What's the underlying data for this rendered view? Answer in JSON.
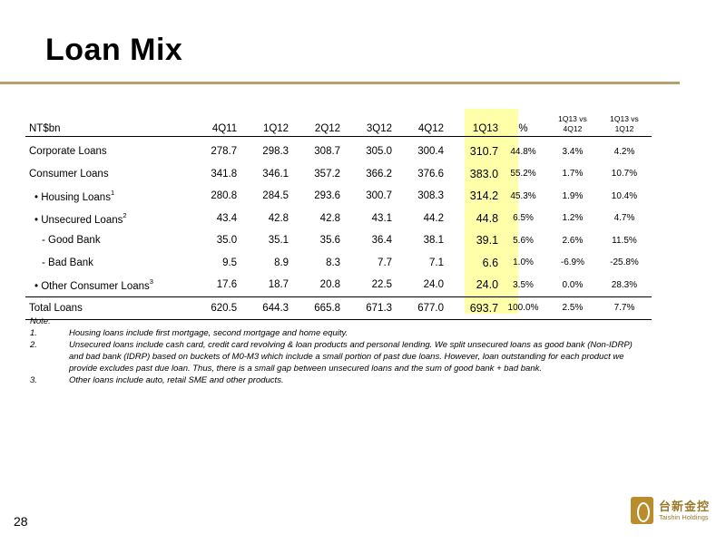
{
  "title": "Loan Mix",
  "table": {
    "headers": {
      "label": "NT$bn",
      "q4q11": "4Q11",
      "q1q12": "1Q12",
      "q2q12": "2Q12",
      "q3q12": "3Q12",
      "q4q12": "4Q12",
      "q1q13": "1Q13",
      "pct": "%",
      "vs4q12_top": "1Q13 vs",
      "vs4q12_bottom": "4Q12",
      "vs1q12_top": "1Q13 vs",
      "vs1q12_bottom": "1Q12"
    },
    "rows": [
      {
        "label": "Corporate Loans",
        "sup": "",
        "q4q11": "278.7",
        "q1q12": "298.3",
        "q2q12": "308.7",
        "q3q12": "305.0",
        "q4q12": "300.4",
        "q1q13": "310.7",
        "pct": "44.8%",
        "vs4q12": "3.4%",
        "vs1q12": "4.2%"
      },
      {
        "label": "Consumer Loans",
        "sup": "",
        "q4q11": "341.8",
        "q1q12": "346.1",
        "q2q12": "357.2",
        "q3q12": "366.2",
        "q4q12": "376.6",
        "q1q13": "383.0",
        "pct": "55.2%",
        "vs4q12": "1.7%",
        "vs1q12": "10.7%"
      },
      {
        "label": "• Housing Loans",
        "sup": "1",
        "q4q11": "280.8",
        "q1q12": "284.5",
        "q2q12": "293.6",
        "q3q12": "300.7",
        "q4q12": "308.3",
        "q1q13": "314.2",
        "pct": "45.3%",
        "vs4q12": "1.9%",
        "vs1q12": "10.4%"
      },
      {
        "label": "• Unsecured Loans",
        "sup": "2",
        "q4q11": "43.4",
        "q1q12": "42.8",
        "q2q12": "42.8",
        "q3q12": "43.1",
        "q4q12": "44.2",
        "q1q13": "44.8",
        "pct": "6.5%",
        "vs4q12": "1.2%",
        "vs1q12": "4.7%"
      },
      {
        "label": "- Good Bank",
        "sup": "",
        "q4q11": "35.0",
        "q1q12": "35.1",
        "q2q12": "35.6",
        "q3q12": "36.4",
        "q4q12": "38.1",
        "q1q13": "39.1",
        "pct": "5.6%",
        "vs4q12": "2.6%",
        "vs1q12": "11.5%"
      },
      {
        "label": "- Bad Bank",
        "sup": "",
        "q4q11": "9.5",
        "q1q12": "8.9",
        "q2q12": "8.3",
        "q3q12": "7.7",
        "q4q12": "7.1",
        "q1q13": "6.6",
        "pct": "1.0%",
        "vs4q12": "-6.9%",
        "vs1q12": "-25.8%"
      },
      {
        "label": "• Other Consumer Loans",
        "sup": "3",
        "q4q11": "17.6",
        "q1q12": "18.7",
        "q2q12": "20.8",
        "q3q12": "22.5",
        "q4q12": "24.0",
        "q1q13": "24.0",
        "pct": "3.5%",
        "vs4q12": "0.0%",
        "vs1q12": "28.3%"
      },
      {
        "label": "Total Loans",
        "sup": "",
        "q4q11": "620.5",
        "q1q12": "644.3",
        "q2q12": "665.8",
        "q3q12": "671.3",
        "q4q12": "677.0",
        "q1q13": "693.7",
        "pct": "100.0%",
        "vs4q12": "2.5%",
        "vs1q12": "7.7%"
      }
    ]
  },
  "notes": {
    "heading": "Note:",
    "items": [
      {
        "num": "1.",
        "text": "Housing loans include first mortgage, second mortgage and home equity."
      },
      {
        "num": "2.",
        "text": "Unsecured loans include cash card, credit card revolving & loan products and personal lending. We split unsecured loans as good bank (Non-IDRP) and bad bank (IDRP) based on buckets of M0-M3 which include a small portion of past due loans. However, loan outstanding for each product we provide excludes past due loan. Thus, there is a small gap between unsecured loans and the sum of good bank + bad bank."
      },
      {
        "num": "3.",
        "text": "Other loans include auto, retail SME and other products."
      }
    ]
  },
  "page_number": "28",
  "logo": {
    "chinese": "台新金控",
    "english": "Taishin Holdings"
  },
  "colors": {
    "accent_rule": "#b8a06a",
    "highlight": "#ffffaa",
    "logo": "#b98d2e"
  }
}
